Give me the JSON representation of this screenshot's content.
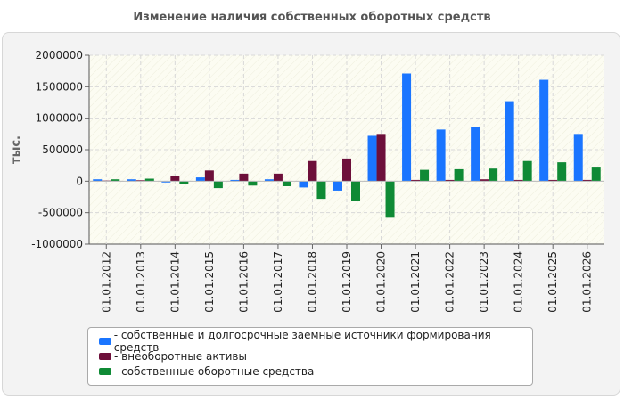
{
  "chart_data": {
    "type": "bar",
    "title": "Изменение наличия собственных оборотных средств",
    "ylabel": "тыс.",
    "ylim": [
      -1000000,
      2000000
    ],
    "yticks": [
      2000000,
      1500000,
      1000000,
      500000,
      0,
      -500000,
      -1000000
    ],
    "grid": true,
    "legend_position": "bottom",
    "categories": [
      "01.01.2012",
      "01.01.2013",
      "01.01.2014",
      "01.01.2015",
      "01.01.2016",
      "01.01.2017",
      "01.01.2018",
      "01.01.2019",
      "01.01.2020",
      "01.01.2021",
      "01.01.2022",
      "01.01.2023",
      "01.01.2024",
      "01.01.2025",
      "01.01.2026"
    ],
    "series": [
      {
        "name": "- собственные и долгосрочные заемные источники формирования средств",
        "color": "#1a75ff",
        "values": [
          30000,
          30000,
          -20000,
          60000,
          20000,
          30000,
          -100000,
          -150000,
          720000,
          1710000,
          820000,
          860000,
          1270000,
          1610000,
          750000
        ]
      },
      {
        "name": "- внеоборотные активы",
        "color": "#6d0f3a",
        "values": [
          10000,
          15000,
          80000,
          170000,
          120000,
          120000,
          320000,
          360000,
          750000,
          20000,
          20000,
          30000,
          20000,
          20000,
          20000
        ]
      },
      {
        "name": "- собственные оборотные средства",
        "color": "#0f8a35",
        "values": [
          30000,
          40000,
          -50000,
          -110000,
          -70000,
          -80000,
          -280000,
          -320000,
          -580000,
          180000,
          190000,
          200000,
          320000,
          300000,
          230000
        ]
      }
    ]
  }
}
